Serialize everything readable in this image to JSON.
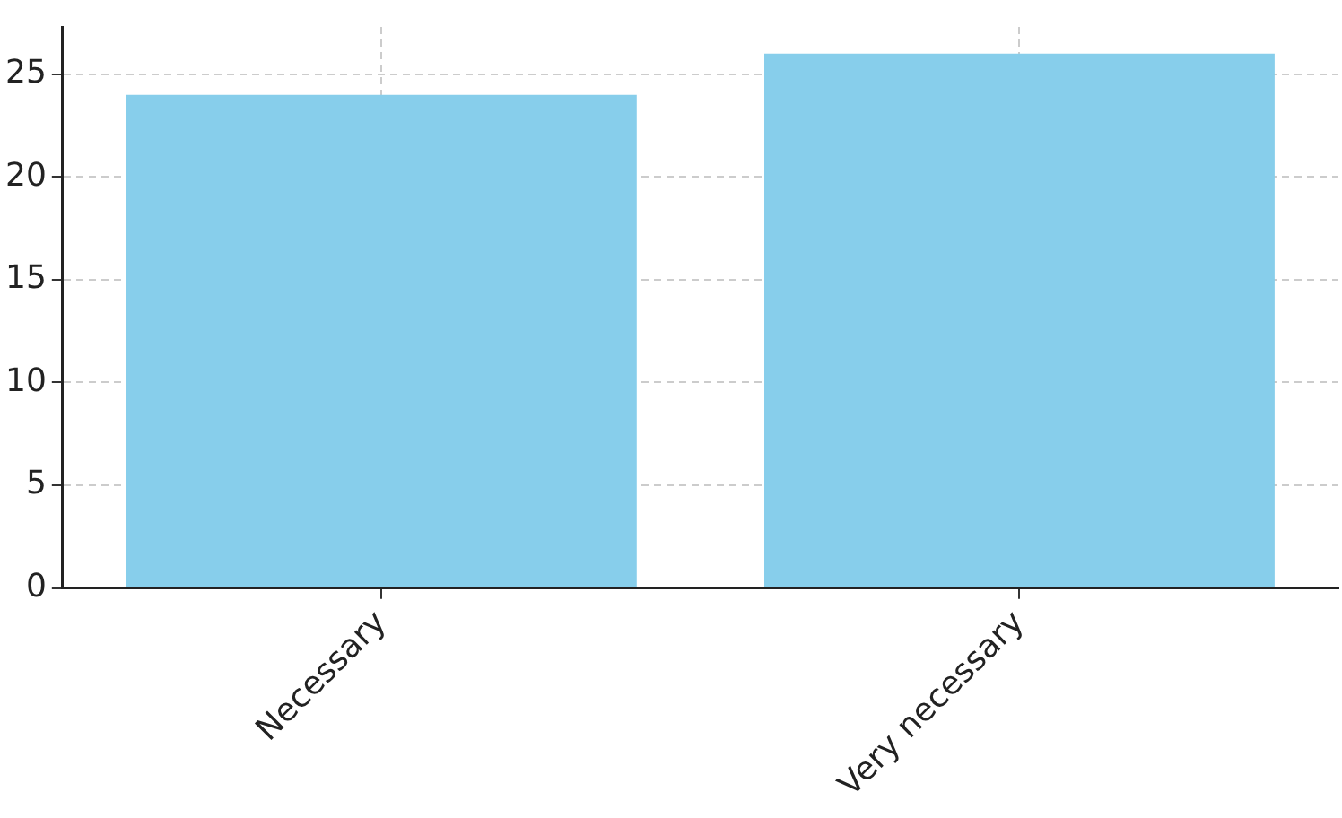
{
  "chart_data": {
    "type": "bar",
    "categories": [
      "Necessary",
      "Very necessary"
    ],
    "values": [
      24,
      26
    ],
    "color": "#87ceeb",
    "ylim": [
      0,
      27.3
    ],
    "yticks": [
      0,
      5,
      10,
      15,
      20,
      25
    ],
    "grid": true,
    "legend": false
  }
}
